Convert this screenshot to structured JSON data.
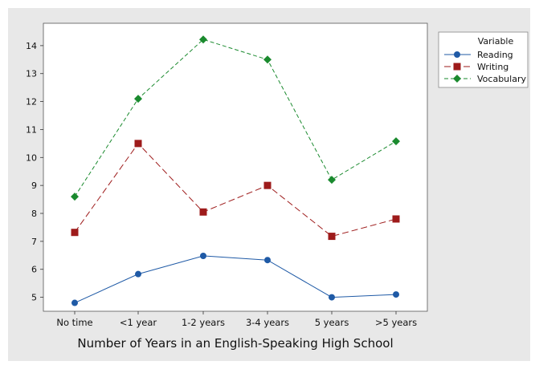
{
  "chart_data": {
    "type": "line",
    "categories": [
      "No time",
      "<1 year",
      "1-2 years",
      "3-4 years",
      "5 years",
      ">5 years"
    ],
    "xlabel": "Number of Years in an English-Speaking High School",
    "ylabel": "",
    "ylim": [
      4.5,
      14.8
    ],
    "yticks": [
      5,
      6,
      7,
      8,
      9,
      10,
      11,
      12,
      13,
      14
    ],
    "grid": false,
    "legend": {
      "title": "Variable",
      "position": "top-right"
    },
    "series": [
      {
        "name": "Reading",
        "values": [
          4.8,
          5.83,
          6.48,
          6.33,
          5.0,
          5.1
        ],
        "color": "#1f5aa6",
        "marker": "circle",
        "line": "solid"
      },
      {
        "name": "Writing",
        "values": [
          7.32,
          10.5,
          8.05,
          9.0,
          7.18,
          7.8
        ],
        "color": "#9e1b1b",
        "marker": "square",
        "line": "dashed-long"
      },
      {
        "name": "Vocabulary",
        "values": [
          8.6,
          12.1,
          14.22,
          13.5,
          9.2,
          10.58
        ],
        "color": "#1a8a2e",
        "marker": "diamond",
        "line": "dashed"
      }
    ],
    "colors": {
      "background": "#e8e8e8",
      "plot_area": "#ffffff"
    }
  }
}
